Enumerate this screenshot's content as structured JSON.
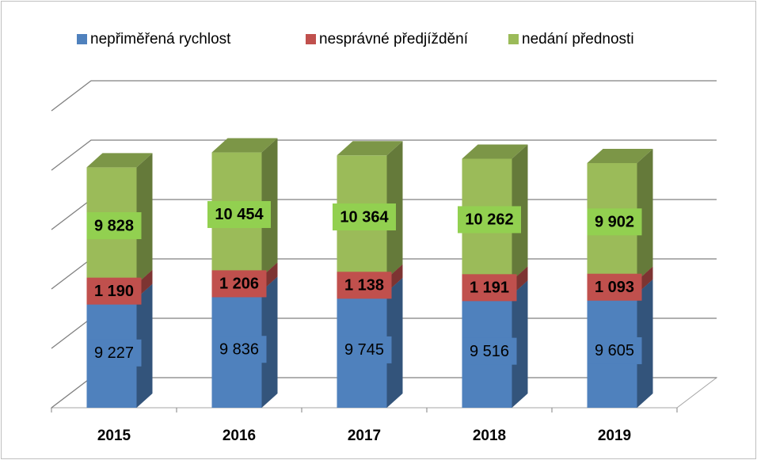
{
  "chart_data": {
    "type": "bar3d_stacked",
    "categories": [
      "2015",
      "2016",
      "2017",
      "2018",
      "2019"
    ],
    "series": [
      {
        "name": "nepřiměřená rychlost",
        "color": "#4f81bd",
        "values": [
          9227,
          9836,
          9745,
          9516,
          9605
        ],
        "value_labels": [
          "9 227",
          "9 836",
          "9 745",
          "9 516",
          "9 605"
        ]
      },
      {
        "name": "nesprávné předjíždění",
        "color": "#c0504d",
        "values": [
          1190,
          1206,
          1138,
          1191,
          1093
        ],
        "value_labels": [
          "1 190",
          "1 206",
          "1 138",
          "1 191",
          "1 093"
        ]
      },
      {
        "name": "nedání přednosti",
        "color": "#9bbb59",
        "values": [
          9828,
          10454,
          10364,
          10262,
          9902
        ],
        "value_labels": [
          "9 828",
          "10 454",
          "10 364",
          "10 262",
          "9 902"
        ]
      }
    ],
    "ylim": [
      0,
      25000
    ],
    "yticks": [
      0,
      5000,
      10000,
      15000,
      20000,
      25000
    ],
    "grid": true,
    "legend": "top"
  }
}
